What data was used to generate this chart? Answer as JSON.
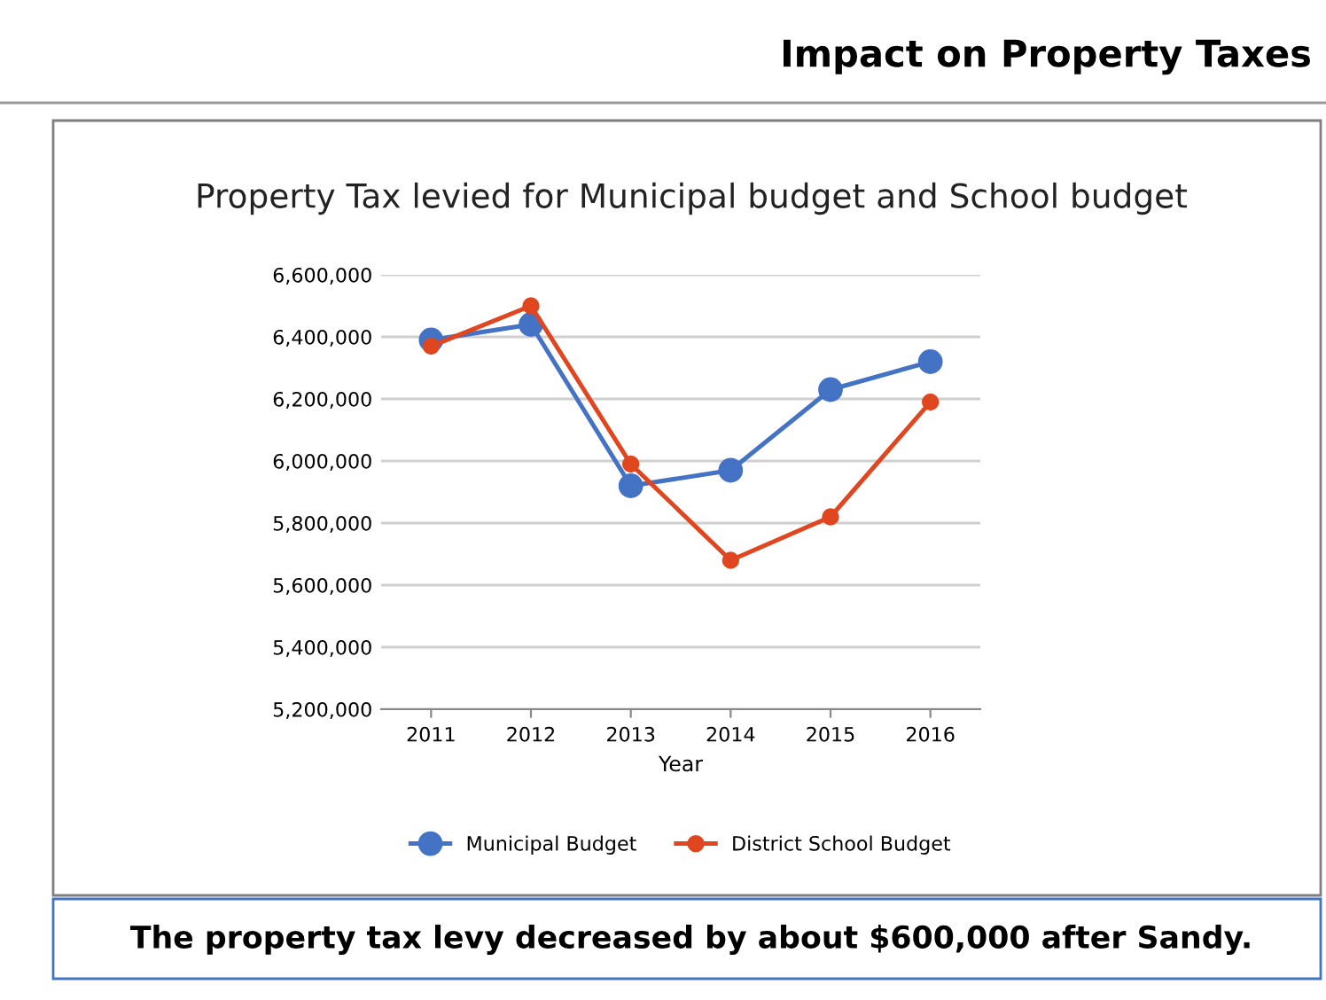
{
  "chart_data": {
    "type": "line",
    "title": "Impact on Property Taxes",
    "subtitle": "Property Tax levied for Municipal budget and School budget",
    "xlabel": "Year",
    "categories": [
      "2011",
      "2012",
      "2013",
      "2014",
      "2015",
      "2016"
    ],
    "series": [
      {
        "name": "Municipal Budget",
        "color": "#4472c4",
        "values": [
          6390000,
          6440000,
          5920000,
          5970000,
          6230000,
          6320000
        ]
      },
      {
        "name": "District School Budget",
        "color": "#e0461f",
        "values": [
          6370000,
          6500000,
          5990000,
          5680000,
          5820000,
          6190000
        ]
      }
    ],
    "ylim": [
      5200000,
      6600000
    ],
    "yticks": [
      {
        "value": 5200000,
        "label": "5,200,000"
      },
      {
        "value": 5400000,
        "label": "5,400,000"
      },
      {
        "value": 5600000,
        "label": "5,600,000"
      },
      {
        "value": 5800000,
        "label": "5,800,000"
      },
      {
        "value": 6000000,
        "label": "6,000,000"
      },
      {
        "value": 6200000,
        "label": "6,200,000"
      },
      {
        "value": 6400000,
        "label": "6,400,000"
      },
      {
        "value": 6600000,
        "label": "6,600,000"
      }
    ],
    "grid": "y",
    "legend": "bottom",
    "marker": "circle",
    "line_style": "solid",
    "annotations": [
      "The property tax levy decreased by about $600,000 after Sandy."
    ]
  }
}
